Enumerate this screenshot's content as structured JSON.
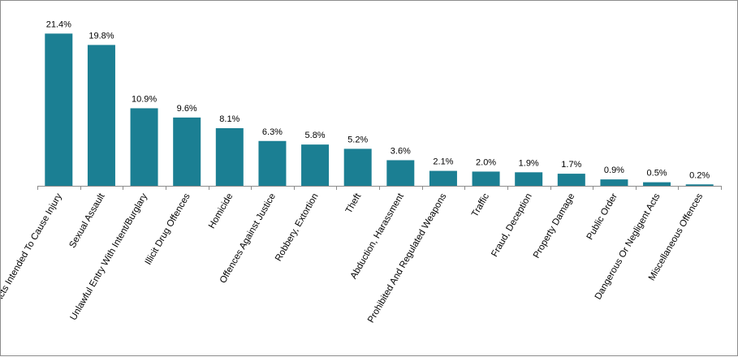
{
  "chart_data": {
    "type": "bar",
    "title": "",
    "xlabel": "",
    "ylabel": "",
    "ylim": [
      0,
      22
    ],
    "grid": false,
    "legend": "none",
    "bar_color": "#1b7f93",
    "axis_color": "#8c8c8c",
    "categories": [
      "Acts Intended To Cause Injury",
      "Sexual Assault",
      "Unlawful Entry With Intent/Burglary",
      "Illicit Drug Offences",
      "Homicide",
      "Offences Against Justice",
      "Robbery, Extortion",
      "Theft",
      "Abduction, Harassment",
      "Prohibited And Regulated Weapons",
      "Traffic",
      "Fraud, Deception",
      "Property Damage",
      "Public Order",
      "Dangerous Or Negligent Acts",
      "Miscellaneous Offences"
    ],
    "values": [
      21.4,
      19.8,
      10.9,
      9.6,
      8.1,
      6.3,
      5.8,
      5.2,
      3.6,
      2.1,
      2.0,
      1.9,
      1.7,
      0.9,
      0.5,
      0.2
    ],
    "data_labels": [
      "21.4%",
      "19.8%",
      "10.9%",
      "9.6%",
      "8.1%",
      "6.3%",
      "5.8%",
      "5.2%",
      "3.6%",
      "2.1%",
      "2.0%",
      "1.9%",
      "1.7%",
      "0.9%",
      "0.5%",
      "0.2%"
    ]
  }
}
